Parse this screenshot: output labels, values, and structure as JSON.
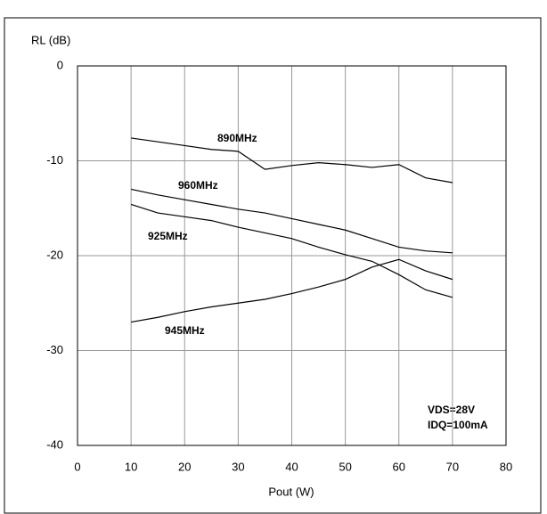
{
  "chart_data": {
    "type": "line",
    "xlabel": "Pout (W)",
    "ylabel": "RL (dB)",
    "x": [
      10,
      15,
      20,
      25,
      30,
      35,
      40,
      45,
      50,
      55,
      60,
      65,
      70
    ],
    "series": [
      {
        "name": "890MHz",
        "color": "#000000",
        "values": [
          -7.6,
          -8.0,
          -8.4,
          -8.8,
          -9.0,
          -10.9,
          -10.5,
          -10.2,
          -10.4,
          -10.7,
          -10.4,
          -11.8,
          -12.3
        ]
      },
      {
        "name": "960MHz",
        "color": "#000000",
        "values": [
          -13.0,
          -13.6,
          -14.1,
          -14.6,
          -15.1,
          -15.5,
          -16.1,
          -16.7,
          -17.3,
          -18.2,
          -19.1,
          -19.5,
          -19.7
        ]
      },
      {
        "name": "925MHz",
        "color": "#000000",
        "values": [
          -14.6,
          -15.5,
          -15.9,
          -16.3,
          -17.0,
          -17.6,
          -18.2,
          -19.1,
          -19.9,
          -20.6,
          -22.0,
          -23.6,
          -24.4
        ]
      },
      {
        "name": "945MHz",
        "color": "#000000",
        "values": [
          -27.0,
          -26.5,
          -25.9,
          -25.4,
          -25.0,
          -24.6,
          -24.0,
          -23.3,
          -22.5,
          -21.2,
          -20.4,
          -21.6,
          -22.5
        ]
      }
    ],
    "annotations": [
      "VDS=28V",
      "IDQ=100mA"
    ],
    "xlim": [
      0,
      80
    ],
    "xticks": [
      0,
      10,
      20,
      30,
      40,
      50,
      60,
      70,
      80
    ],
    "ylim": [
      -40,
      0
    ],
    "yticks": [
      -40,
      -30,
      -20,
      -10,
      0
    ],
    "grid": true
  }
}
